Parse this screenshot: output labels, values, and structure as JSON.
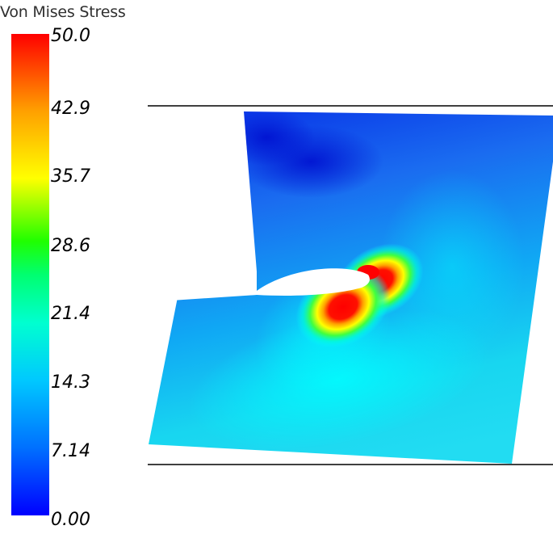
{
  "legend": {
    "title": "Von Mises Stress",
    "ticks": [
      "50.0",
      "42.9",
      "35.7",
      "28.6",
      "21.4",
      "14.3",
      "7.14",
      "0.00"
    ],
    "min": 0.0,
    "max": 50.0,
    "colormap": [
      "#0000ff",
      "#00a0ff",
      "#00ffff",
      "#00ff80",
      "#00ff00",
      "#ffff00",
      "#ffa000",
      "#ff0000"
    ]
  },
  "colors": {
    "background": "#ffffff",
    "boundary_lines": "#000000",
    "hole": "#ffffff"
  }
}
